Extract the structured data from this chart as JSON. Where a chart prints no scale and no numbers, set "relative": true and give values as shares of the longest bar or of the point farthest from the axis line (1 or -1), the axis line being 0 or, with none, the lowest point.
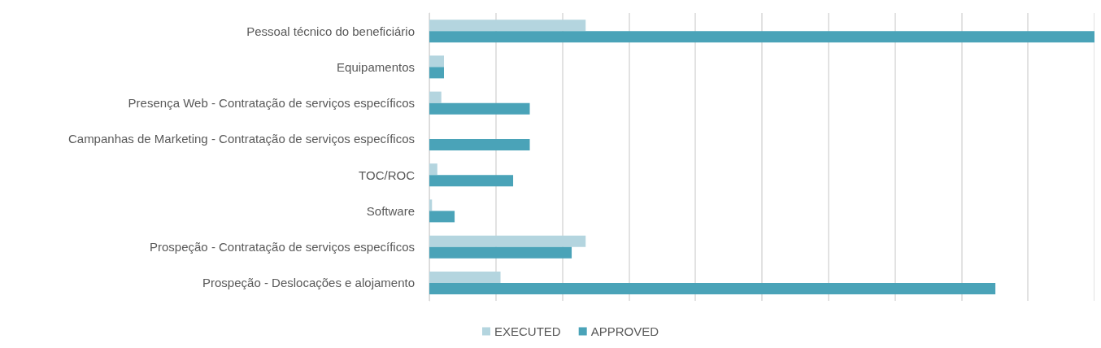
{
  "chart_data": {
    "type": "bar",
    "orientation": "horizontal",
    "relative": true,
    "grid": "x",
    "legend": "bottom",
    "categories": [
      "Pessoal técnico do beneficiário",
      "Equipamentos",
      "Presença Web - Contratação de serviços específicos",
      "Campanhas de Marketing - Contratação de serviços específicos",
      "TOC/ROC",
      "Software",
      "Prospeção - Contratação de serviços específicos",
      "Prospeção - Deslocações e alojamento"
    ],
    "series": [
      {
        "name": "EXECUTED",
        "color": "#b4d5df",
        "values": [
          0.235,
          0.022,
          0.018,
          0,
          0.012,
          0.004,
          0.235,
          0.107
        ]
      },
      {
        "name": "APPROVED",
        "color": "#4aa3b8",
        "values": [
          1,
          0.022,
          0.151,
          0.151,
          0.126,
          0.038,
          0.214,
          0.851
        ]
      }
    ]
  }
}
